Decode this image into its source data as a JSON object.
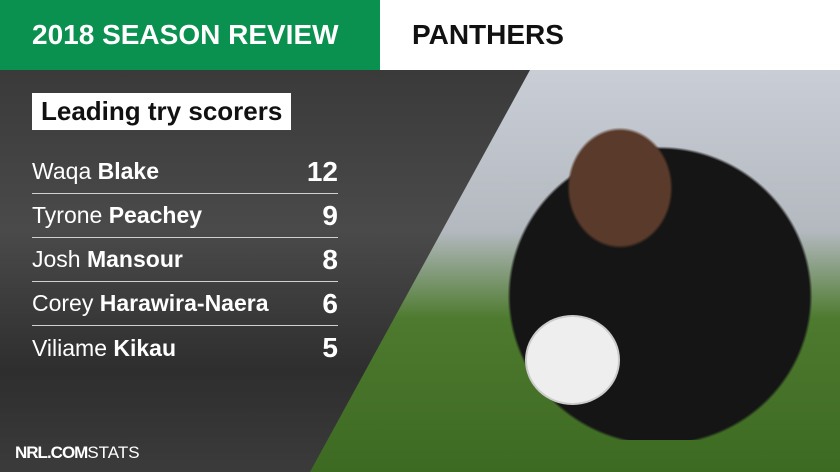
{
  "header": {
    "title": "2018 SEASON REVIEW",
    "team": "PANTHERS"
  },
  "subtitle": "Leading try scorers",
  "players": [
    {
      "first": "Waqa",
      "last": "Blake",
      "tries": "12"
    },
    {
      "first": "Tyrone",
      "last": "Peachey",
      "tries": "9"
    },
    {
      "first": "Josh",
      "last": "Mansour",
      "tries": "8"
    },
    {
      "first": "Corey",
      "last": "Harawira-Naera",
      "tries": "6"
    },
    {
      "first": "Viliame",
      "last": "Kikau",
      "tries": "5"
    }
  ],
  "footer": {
    "brand": "NRL.COM",
    "label": "STATS"
  },
  "colors": {
    "brand_green": "#0a9150"
  }
}
